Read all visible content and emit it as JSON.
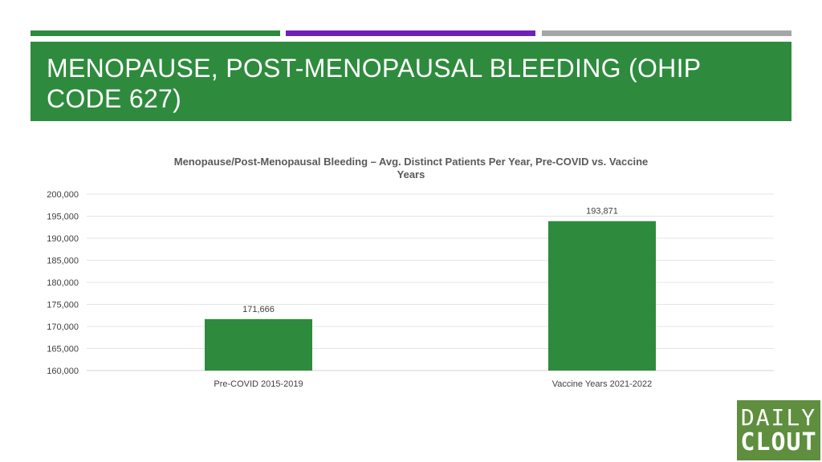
{
  "slide": {
    "title": "MENOPAUSE, POST-MENOPAUSAL  BLEEDING  (OHIP CODE 627)",
    "accent_colors": [
      "#2e8b3d",
      "#7021b5",
      "#a6a6a6"
    ],
    "title_band_color": "#2e8b3d"
  },
  "chart_data": {
    "type": "bar",
    "title": "Menopause/Post-Menopausal Bleeding – Avg. Distinct Patients Per Year, Pre-COVID vs. Vaccine Years",
    "categories": [
      "Pre-COVID 2015-2019",
      "Vaccine Years 2021-2022"
    ],
    "values": [
      171666,
      193871
    ],
    "data_labels": [
      "171,666",
      "193,871"
    ],
    "ylim": [
      160000,
      200000
    ],
    "yticks": [
      160000,
      165000,
      170000,
      175000,
      180000,
      185000,
      190000,
      195000,
      200000
    ],
    "ytick_labels": [
      "160,000",
      "165,000",
      "170,000",
      "175,000",
      "180,000",
      "185,000",
      "190,000",
      "195,000",
      "200,000"
    ],
    "xlabel": "",
    "ylabel": "",
    "grid": true,
    "legend": "none",
    "bar_color": "#2e8b3d"
  },
  "logo": {
    "top": "DAILY",
    "bottom": "CLOUT",
    "color": "#5f8f3e"
  }
}
